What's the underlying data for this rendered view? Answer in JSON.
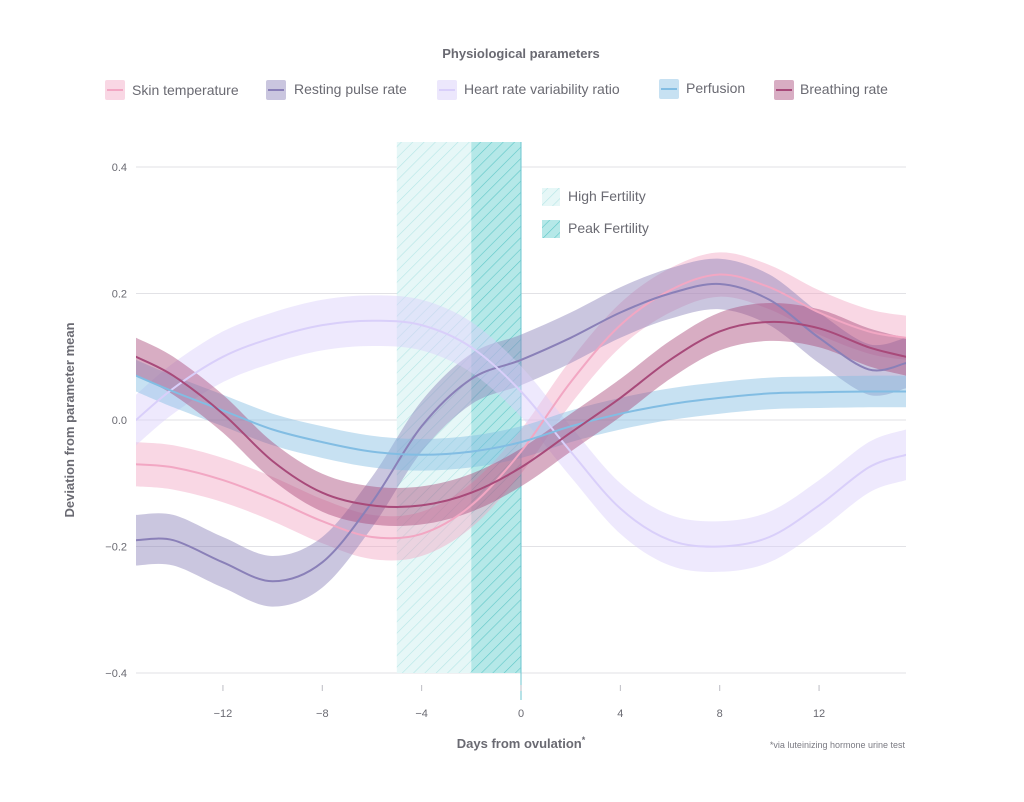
{
  "chart_data": {
    "type": "line",
    "title": "Physiological parameters",
    "xlabel": "Days from ovulation",
    "xlabel_superscript": "*",
    "ylabel": "Deviation from parameter mean",
    "footnote": "*via luteinizing hormone urine test",
    "xlim": [
      -15.5,
      15.5
    ],
    "ylim": [
      -0.4,
      0.4
    ],
    "xticks": [
      -12,
      -8,
      -4,
      0,
      4,
      8,
      12
    ],
    "xtick_labels": [
      "−12",
      "−8",
      "−4",
      "0",
      "4",
      "8",
      "12"
    ],
    "yticks": [
      0.4,
      0.2,
      0.0,
      -0.2,
      -0.4
    ],
    "ytick_labels": [
      "0.4",
      "0.2",
      "0.0",
      "−0.2",
      "−0.4"
    ],
    "grid": true,
    "legend_position": "top",
    "x": [
      -15.5,
      -14,
      -12,
      -10,
      -8,
      -6,
      -4,
      -2,
      0,
      2,
      4,
      6,
      8,
      10,
      12,
      14,
      15.5
    ],
    "series": [
      {
        "name": "Skin temperature",
        "color": "#f2a7c3",
        "values": [
          -0.07,
          -0.075,
          -0.095,
          -0.125,
          -0.16,
          -0.185,
          -0.18,
          -0.135,
          -0.05,
          0.06,
          0.15,
          0.205,
          0.23,
          0.21,
          0.17,
          0.14,
          0.13
        ],
        "band": 0.035
      },
      {
        "name": "Resting pulse rate",
        "color": "#8a80b8",
        "values": [
          -0.19,
          -0.19,
          -0.225,
          -0.255,
          -0.225,
          -0.13,
          -0.01,
          0.065,
          0.095,
          0.13,
          0.17,
          0.2,
          0.215,
          0.19,
          0.13,
          0.08,
          0.09
        ],
        "band": 0.04
      },
      {
        "name": "Heart rate variability ratio",
        "color": "#d9cffa",
        "values": [
          0.0,
          0.05,
          0.1,
          0.13,
          0.15,
          0.157,
          0.15,
          0.115,
          0.045,
          -0.05,
          -0.14,
          -0.19,
          -0.2,
          -0.185,
          -0.135,
          -0.075,
          -0.055
        ],
        "band": 0.04
      },
      {
        "name": "Perfusion",
        "color": "#82bde3",
        "values": [
          0.07,
          0.045,
          0.015,
          -0.015,
          -0.035,
          -0.05,
          -0.055,
          -0.05,
          -0.035,
          -0.01,
          0.01,
          0.025,
          0.035,
          0.042,
          0.044,
          0.045,
          0.045
        ],
        "band": 0.025
      },
      {
        "name": "Breathing rate",
        "color": "#a84a7a",
        "values": [
          0.1,
          0.07,
          0.01,
          -0.065,
          -0.115,
          -0.135,
          -0.135,
          -0.115,
          -0.075,
          -0.02,
          0.035,
          0.095,
          0.14,
          0.155,
          0.145,
          0.115,
          0.1
        ],
        "band": 0.03
      }
    ],
    "regions": [
      {
        "name": "High Fertility",
        "x_range": [
          -5,
          0
        ],
        "color": "#7fd6d6"
      },
      {
        "name": "Peak Fertility",
        "x_range": [
          -2,
          0
        ],
        "color": "#3cbdbd"
      }
    ]
  }
}
